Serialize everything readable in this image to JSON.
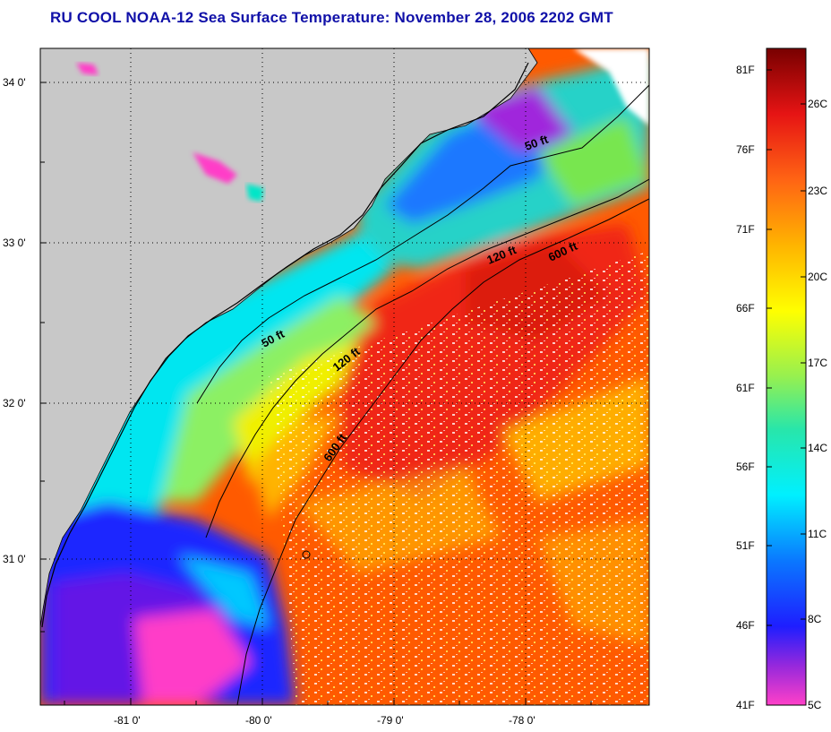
{
  "title": "RU COOL  NOAA-12  Sea Surface Temperature:  November 28, 2006 2202 GMT",
  "map": {
    "lat_labels": [
      "34 0'",
      "33 0'",
      "32 0'",
      "31 0'"
    ],
    "lon_labels": [
      "-81 0'",
      "-80 0'",
      "-79 0'",
      "-78 0'"
    ],
    "isobath_labels": {
      "shelf_50_north": "50 ft",
      "shelf_120_north": "120 ft",
      "shelf_600_north": "600 ft",
      "shelf_50_south": "50 ft",
      "shelf_120_south": "120 ft",
      "shelf_600_south": "600 ft"
    }
  },
  "colorbar": {
    "fahrenheit_labels": [
      "81F",
      "76F",
      "71F",
      "66F",
      "61F",
      "56F",
      "51F",
      "46F",
      "41F"
    ],
    "celsius_labels": [
      "26C",
      "23C",
      "20C",
      "17C",
      "14C",
      "11C",
      "8C",
      "5C"
    ]
  },
  "colors": {
    "title": "#1010a8",
    "land": "#c8c8c8",
    "warm_water": "#ff5000",
    "cold_water": "#1818ff"
  }
}
